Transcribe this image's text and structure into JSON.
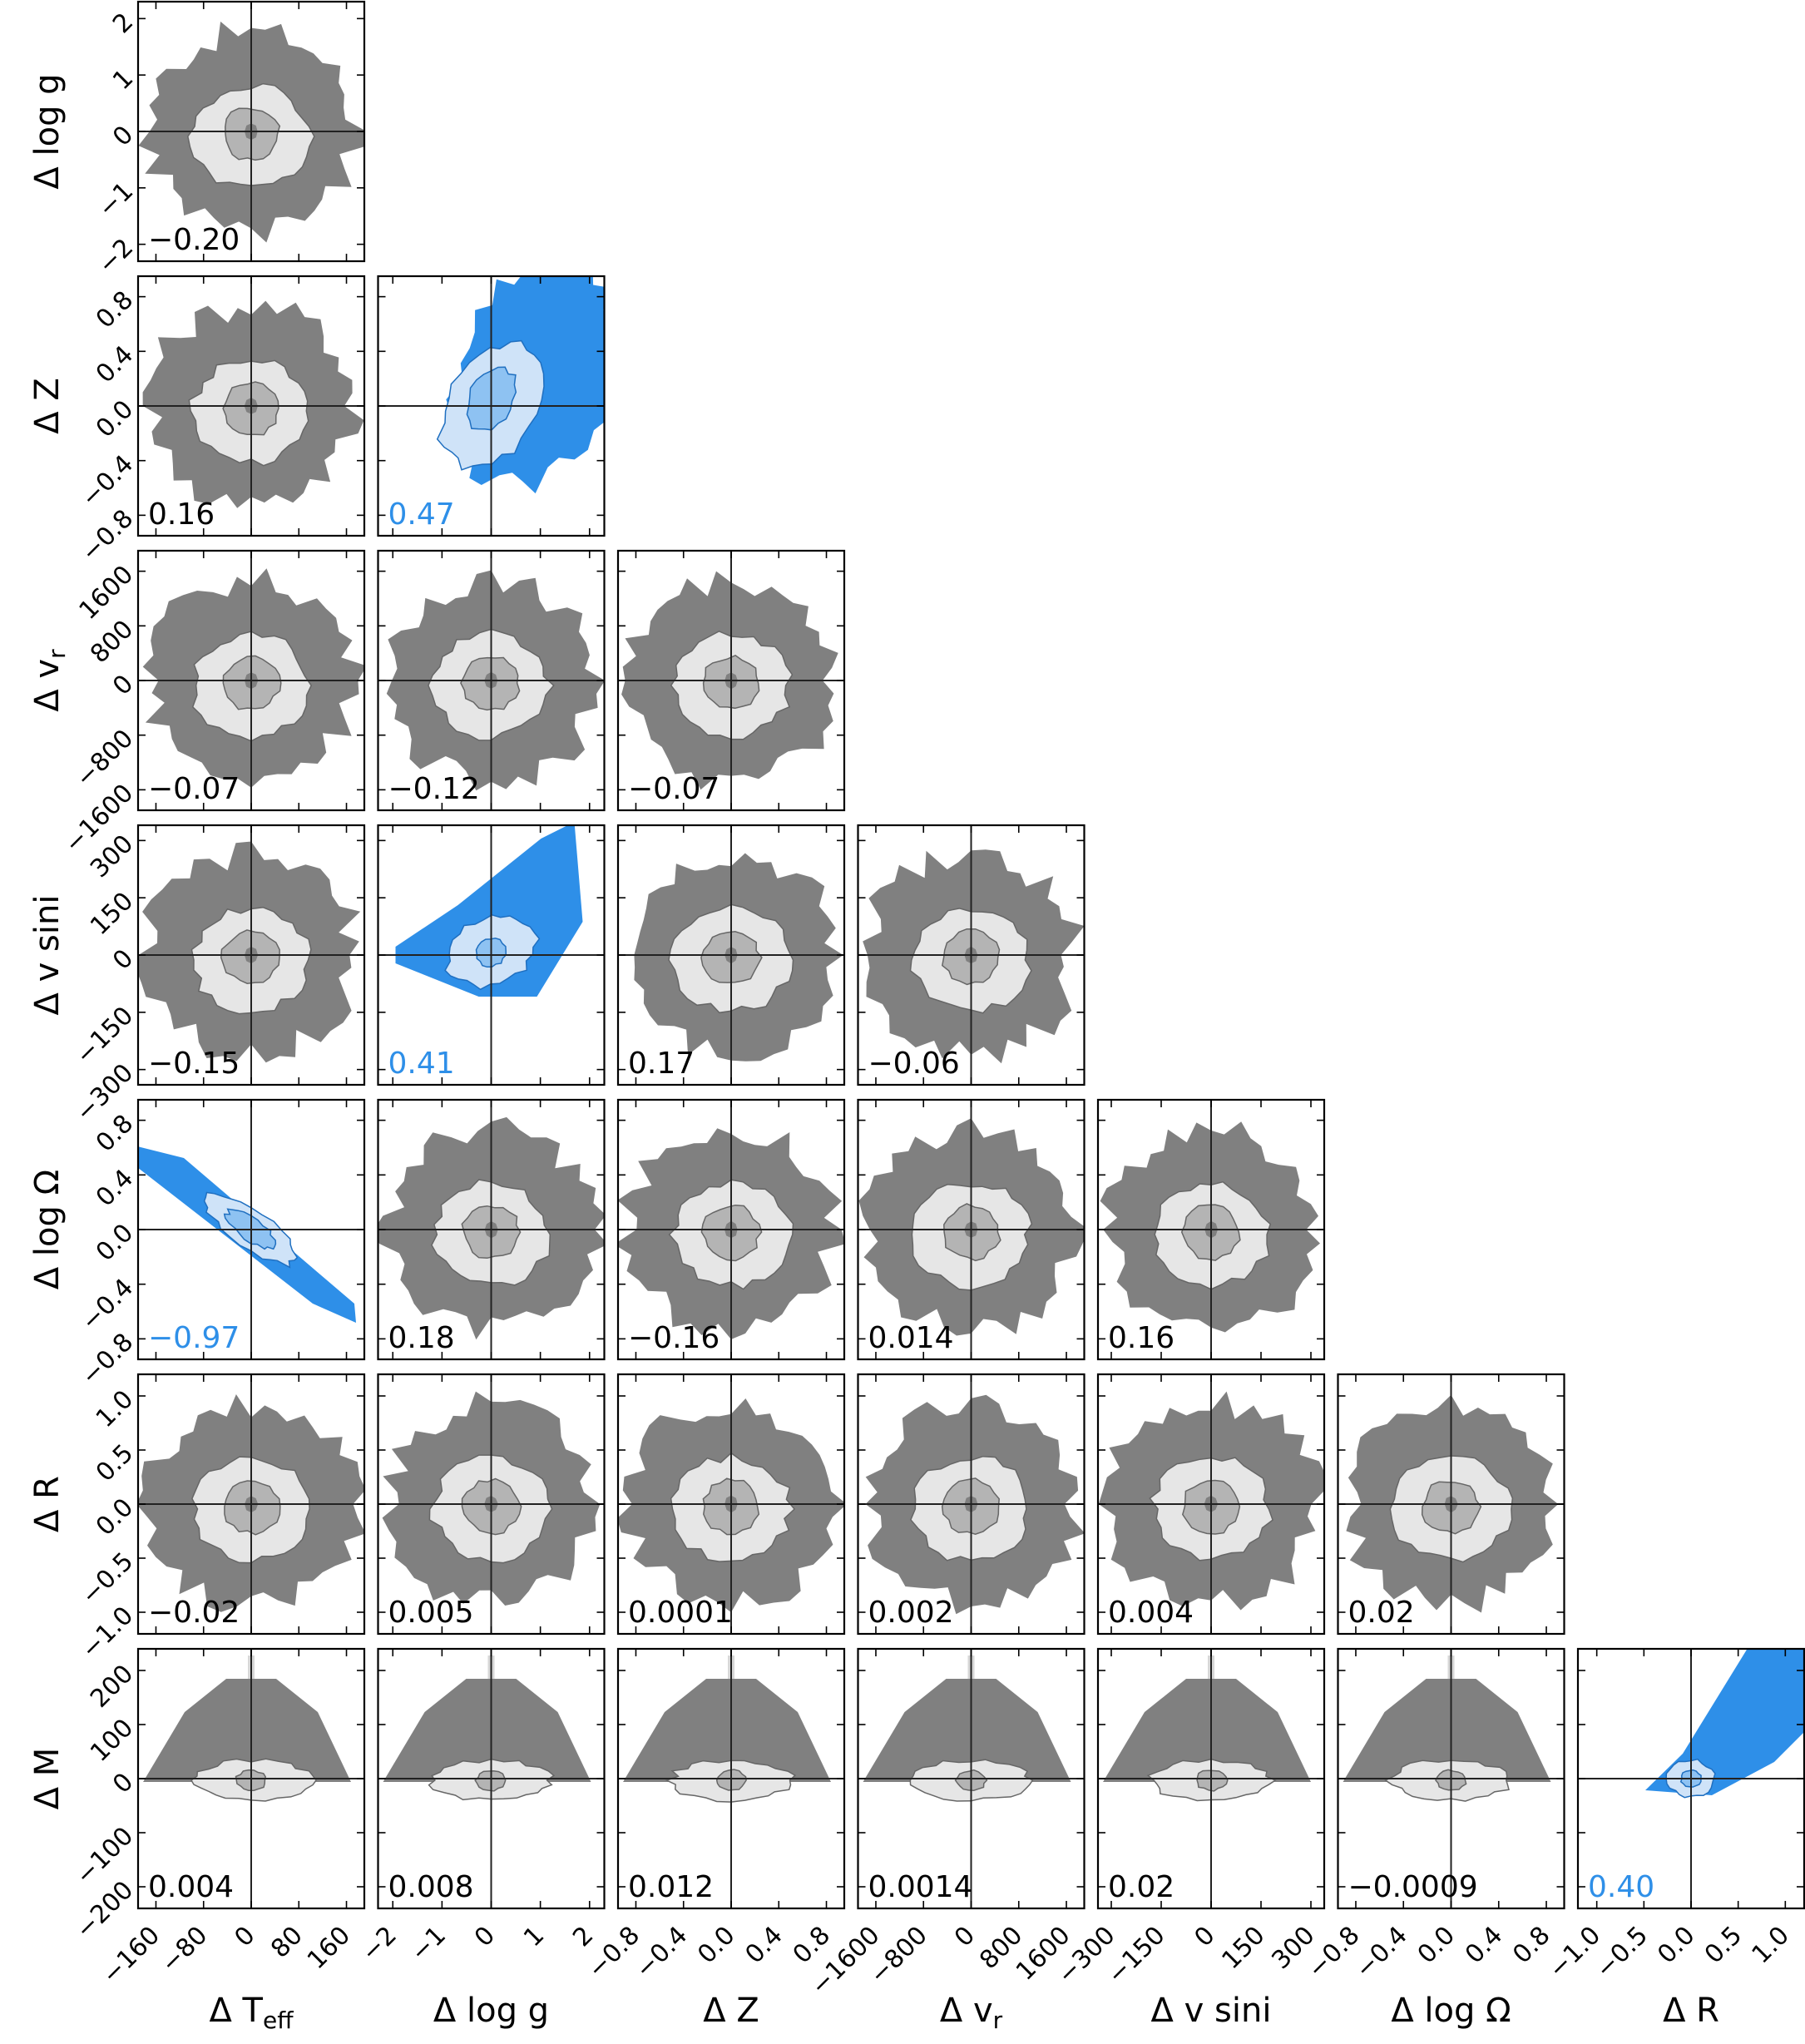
{
  "chart_data": {
    "type": "scatter",
    "layout": "corner-plot",
    "highlight_color": "#2e8fe8",
    "base_color": "#808080",
    "x_axes": [
      {
        "label": "Δ T",
        "sub": "eff",
        "ticks": [
          -160,
          -80,
          0,
          80,
          160
        ],
        "tick_labels": [
          "−160",
          "−80",
          "0",
          "80",
          "160"
        ],
        "lim": [
          -190,
          190
        ]
      },
      {
        "label": "Δ log g",
        "ticks": [
          -2,
          -1,
          0,
          1,
          2
        ],
        "tick_labels": [
          "−2",
          "−1",
          "0",
          "1",
          "2"
        ],
        "lim": [
          -2.3,
          2.3
        ]
      },
      {
        "label": "Δ Z",
        "ticks": [
          -0.8,
          -0.4,
          0.0,
          0.4,
          0.8
        ],
        "tick_labels": [
          "−0.8",
          "−0.4",
          "0.0",
          "0.4",
          "0.8"
        ],
        "lim": [
          -0.95,
          0.95
        ]
      },
      {
        "label": "Δ v",
        "sub": "r",
        "ticks": [
          -1600,
          -800,
          0,
          800,
          1600
        ],
        "tick_labels": [
          "−1600",
          "−800",
          "0",
          "800",
          "1600"
        ],
        "lim": [
          -1900,
          1900
        ]
      },
      {
        "label": "Δ v sini",
        "ticks": [
          -300,
          -150,
          0,
          150,
          300
        ],
        "tick_labels": [
          "−300",
          "−150",
          "0",
          "150",
          "300"
        ],
        "lim": [
          -340,
          340
        ]
      },
      {
        "label": "Δ log Ω",
        "ticks": [
          -0.8,
          -0.4,
          0.0,
          0.4,
          0.8
        ],
        "tick_labels": [
          "−0.8",
          "−0.4",
          "0.0",
          "0.4",
          "0.8"
        ],
        "lim": [
          -0.95,
          0.95
        ]
      },
      {
        "label": "Δ R",
        "ticks": [
          -1.0,
          -0.5,
          0.0,
          0.5,
          1.0
        ],
        "tick_labels": [
          "−1.0",
          "−0.5",
          "0.0",
          "0.5",
          "1.0"
        ],
        "lim": [
          -1.2,
          1.2
        ]
      }
    ],
    "y_axes": [
      {
        "label": "Δ log g",
        "ticks": [
          -2,
          -1,
          0,
          1,
          2
        ],
        "tick_labels": [
          "−2",
          "−1",
          "0",
          "1",
          "2"
        ],
        "lim": [
          -2.3,
          2.3
        ]
      },
      {
        "label": "Δ Z",
        "ticks": [
          -0.8,
          -0.4,
          0.0,
          0.4,
          0.8
        ],
        "tick_labels": [
          "−0.8",
          "−0.4",
          "0.0",
          "0.4",
          "0.8"
        ],
        "lim": [
          -0.95,
          0.95
        ]
      },
      {
        "label": "Δ v",
        "sub": "r",
        "ticks": [
          -1600,
          -800,
          0,
          800,
          1600
        ],
        "tick_labels": [
          "−1600",
          "−800",
          "0",
          "800",
          "1600"
        ],
        "lim": [
          -1900,
          1900
        ]
      },
      {
        "label": "Δ v sini",
        "ticks": [
          -300,
          -150,
          0,
          150,
          300
        ],
        "tick_labels": [
          "−300",
          "−150",
          "0",
          "150",
          "300"
        ],
        "lim": [
          -340,
          340
        ]
      },
      {
        "label": "Δ log Ω",
        "ticks": [
          -0.8,
          -0.4,
          0.0,
          0.4,
          0.8
        ],
        "tick_labels": [
          "−0.8",
          "−0.4",
          "0.0",
          "0.4",
          "0.8"
        ],
        "lim": [
          -0.95,
          0.95
        ]
      },
      {
        "label": "Δ R",
        "ticks": [
          -1.0,
          -0.5,
          0.0,
          0.5,
          1.0
        ],
        "tick_labels": [
          "−1.0",
          "−0.5",
          "0.0",
          "0.5",
          "1.0"
        ],
        "lim": [
          -1.2,
          1.2
        ]
      },
      {
        "label": "Δ M",
        "ticks": [
          -200,
          -100,
          0,
          100,
          200
        ],
        "tick_labels": [
          "−200",
          "−100",
          "0",
          "100",
          "200"
        ],
        "lim": [
          -240,
          240
        ]
      }
    ],
    "panels": [
      {
        "row": 0,
        "col": 0,
        "corr": "−0.20",
        "highlight": false,
        "shape": "blob"
      },
      {
        "row": 1,
        "col": 0,
        "corr": "0.16",
        "highlight": false,
        "shape": "blob"
      },
      {
        "row": 1,
        "col": 1,
        "corr": "0.47",
        "highlight": true,
        "shape": "tilt"
      },
      {
        "row": 2,
        "col": 0,
        "corr": "−0.07",
        "highlight": false,
        "shape": "blob"
      },
      {
        "row": 2,
        "col": 1,
        "corr": "−0.12",
        "highlight": false,
        "shape": "blob"
      },
      {
        "row": 2,
        "col": 2,
        "corr": "−0.07",
        "highlight": false,
        "shape": "blob"
      },
      {
        "row": 3,
        "col": 0,
        "corr": "−0.15",
        "highlight": false,
        "shape": "blob"
      },
      {
        "row": 3,
        "col": 1,
        "corr": "0.41",
        "highlight": true,
        "shape": "fan"
      },
      {
        "row": 3,
        "col": 2,
        "corr": "0.17",
        "highlight": false,
        "shape": "blob"
      },
      {
        "row": 3,
        "col": 3,
        "corr": "−0.06",
        "highlight": false,
        "shape": "blob"
      },
      {
        "row": 4,
        "col": 0,
        "corr": "−0.97",
        "highlight": true,
        "shape": "line"
      },
      {
        "row": 4,
        "col": 1,
        "corr": "0.18",
        "highlight": false,
        "shape": "blob"
      },
      {
        "row": 4,
        "col": 2,
        "corr": "−0.16",
        "highlight": false,
        "shape": "blob"
      },
      {
        "row": 4,
        "col": 3,
        "corr": "0.014",
        "highlight": false,
        "shape": "blob"
      },
      {
        "row": 4,
        "col": 4,
        "corr": "0.16",
        "highlight": false,
        "shape": "blob"
      },
      {
        "row": 5,
        "col": 0,
        "corr": "−0.02",
        "highlight": false,
        "shape": "blob"
      },
      {
        "row": 5,
        "col": 1,
        "corr": "0.005",
        "highlight": false,
        "shape": "blob"
      },
      {
        "row": 5,
        "col": 2,
        "corr": "0.0001",
        "highlight": false,
        "shape": "blob"
      },
      {
        "row": 5,
        "col": 3,
        "corr": "0.002",
        "highlight": false,
        "shape": "blob"
      },
      {
        "row": 5,
        "col": 4,
        "corr": "0.004",
        "highlight": false,
        "shape": "blob"
      },
      {
        "row": 5,
        "col": 5,
        "corr": "0.02",
        "highlight": false,
        "shape": "blob"
      },
      {
        "row": 6,
        "col": 0,
        "corr": "0.004",
        "highlight": false,
        "shape": "flat"
      },
      {
        "row": 6,
        "col": 1,
        "corr": "0.008",
        "highlight": false,
        "shape": "flat"
      },
      {
        "row": 6,
        "col": 2,
        "corr": "0.012",
        "highlight": false,
        "shape": "flat"
      },
      {
        "row": 6,
        "col": 3,
        "corr": "0.0014",
        "highlight": false,
        "shape": "flat"
      },
      {
        "row": 6,
        "col": 4,
        "corr": "0.02",
        "highlight": false,
        "shape": "flat"
      },
      {
        "row": 6,
        "col": 5,
        "corr": "−0.0009",
        "highlight": false,
        "shape": "flat"
      },
      {
        "row": 6,
        "col": 6,
        "corr": "0.40",
        "highlight": true,
        "shape": "fan-right"
      }
    ]
  }
}
